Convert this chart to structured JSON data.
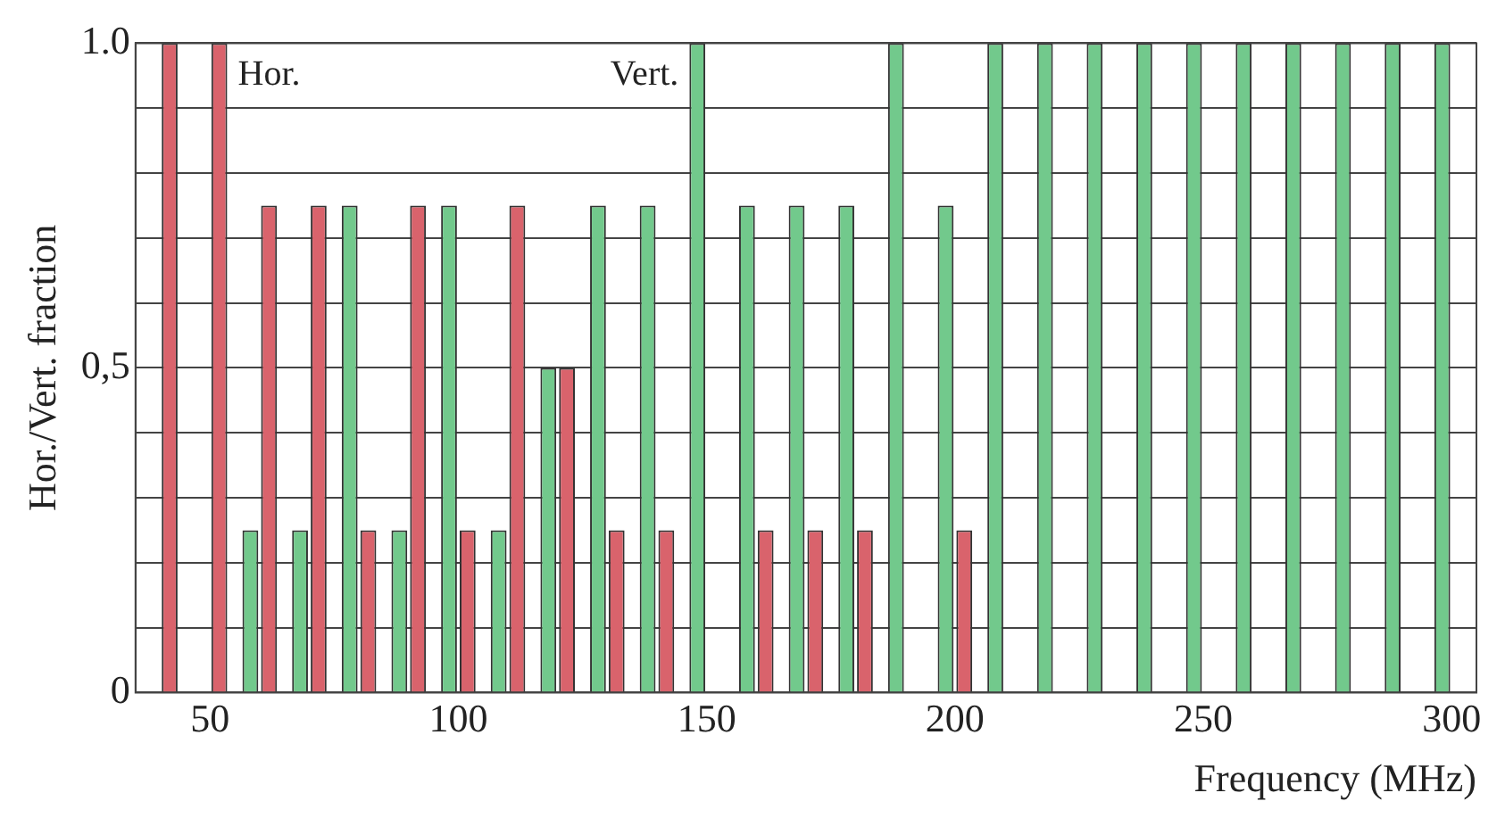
{
  "chart_data": {
    "type": "bar",
    "xlabel": "Frequency (MHz)",
    "ylabel": "Hor./Vert. fraction",
    "categories": [
      null,
      "50",
      null,
      null,
      null,
      null,
      "100",
      null,
      null,
      null,
      null,
      "150",
      null,
      null,
      null,
      null,
      "200",
      null,
      null,
      null,
      null,
      "250",
      null,
      null,
      null,
      null,
      "300"
    ],
    "series": [
      {
        "name": "Vert.",
        "color": "#72c98c",
        "values": [
          null,
          null,
          0.25,
          0.25,
          0.75,
          0.25,
          0.75,
          0.25,
          0.5,
          0.75,
          0.75,
          1,
          0.75,
          0.75,
          0.75,
          1,
          0.75,
          1,
          1,
          1,
          1,
          1,
          1,
          1,
          1,
          1,
          1
        ]
      },
      {
        "name": "Hor.",
        "color": "#d9636c",
        "values": [
          1,
          1,
          0.75,
          0.75,
          0.25,
          0.75,
          0.25,
          0.75,
          0.5,
          0.25,
          0.25,
          null,
          0.25,
          0.25,
          0.25,
          null,
          0.25,
          null,
          null,
          null,
          null,
          null,
          null,
          null,
          null,
          null,
          null
        ]
      }
    ],
    "ylim": [
      0,
      1
    ],
    "yticks": [
      0,
      {
        "value": 0.1,
        "label": null
      },
      {
        "value": 0.2,
        "label": null
      },
      {
        "value": 0.3,
        "label": null
      },
      {
        "value": 0.4,
        "label": null
      },
      {
        "value": 0.5,
        "label": "0,5"
      },
      {
        "value": 0.6,
        "label": null
      },
      {
        "value": 0.7,
        "label": null
      },
      {
        "value": 0.8,
        "label": null
      },
      {
        "value": 0.9,
        "label": null
      },
      {
        "value": 1,
        "label": "1.0"
      }
    ],
    "grid": "y",
    "legend": false
  }
}
